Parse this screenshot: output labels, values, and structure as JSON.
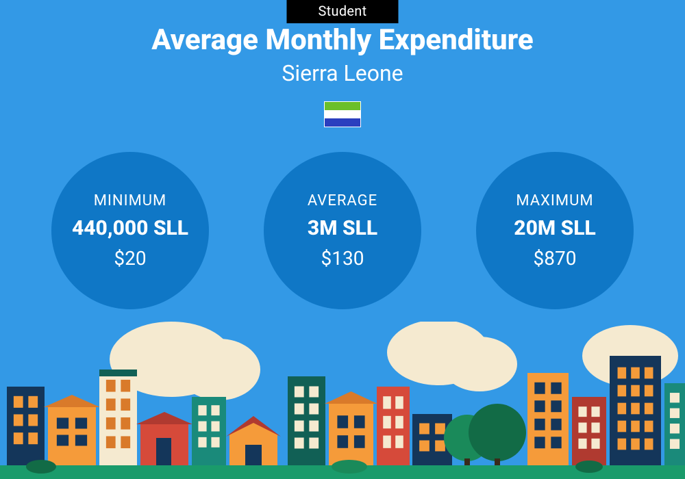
{
  "colors": {
    "background": "#3399e6",
    "circle": "#0f77c6",
    "badge_bg": "#000000",
    "badge_text": "#ffffff",
    "text": "#ffffff",
    "flag_top": "#6bbf2a",
    "flag_mid": "#ffffff",
    "flag_bot": "#2b3fbf",
    "art": {
      "ground": "#1a9b6b",
      "cream": "#f5ead0",
      "orange": "#f59b3a",
      "darkorange": "#d97a2a",
      "red": "#d64a3a",
      "darkred": "#b03a30",
      "navy": "#14365a",
      "teal": "#1a8a7a",
      "darkteal": "#116055",
      "tree1": "#1a8a5a",
      "tree2": "#126b46",
      "trunk": "#3a2a1a"
    }
  },
  "badge": {
    "label": "Student"
  },
  "title": "Average Monthly Expenditure",
  "subtitle": "Sierra Leone",
  "stats": [
    {
      "label": "MINIMUM",
      "main": "440,000 SLL",
      "sub": "$20"
    },
    {
      "label": "AVERAGE",
      "main": "3M SLL",
      "sub": "$130"
    },
    {
      "label": "MAXIMUM",
      "main": "20M SLL",
      "sub": "$870"
    }
  ]
}
